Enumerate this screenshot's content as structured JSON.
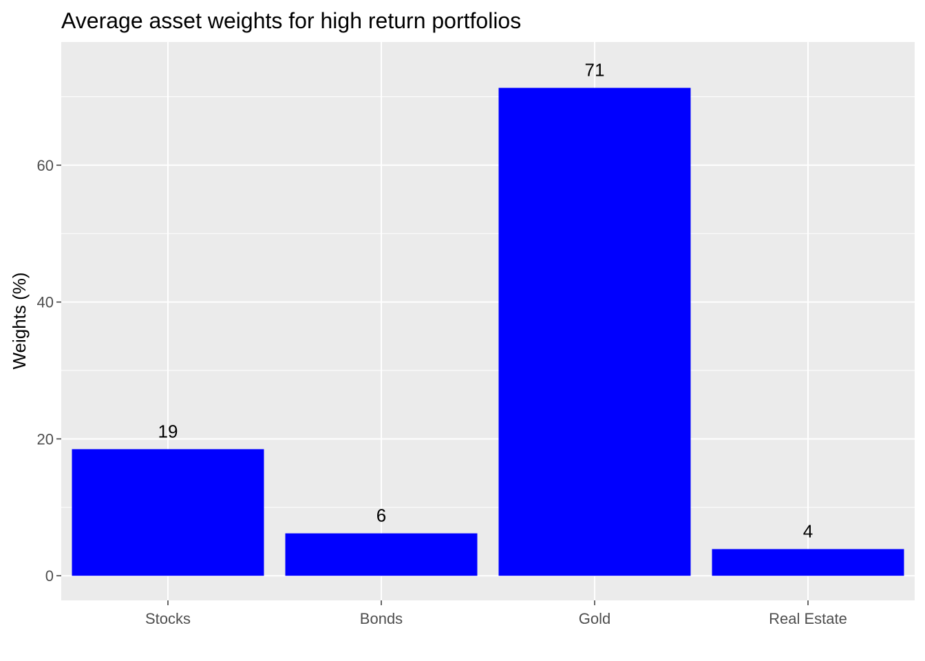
{
  "chart_data": {
    "type": "bar",
    "title": "Average asset weights for high return portfolios",
    "xlabel": "",
    "ylabel": "Weights (%)",
    "categories": [
      "Stocks",
      "Bonds",
      "Gold",
      "Real Estate"
    ],
    "values": [
      18.5,
      6.2,
      71.3,
      3.9
    ],
    "data_labels": [
      "19",
      "6",
      "71",
      "4"
    ],
    "ylim": [
      -3.6,
      78
    ],
    "yticks": [
      0,
      20,
      40,
      60
    ],
    "ytick_labels": [
      "0",
      "20",
      "40",
      "60"
    ],
    "grid": true,
    "legend": "none",
    "colors": {
      "bar": "#0000ff",
      "panel": "#ebebeb",
      "grid": "#ffffff",
      "tick_text": "#4d4d4d",
      "tick_mark": "#333333"
    }
  }
}
